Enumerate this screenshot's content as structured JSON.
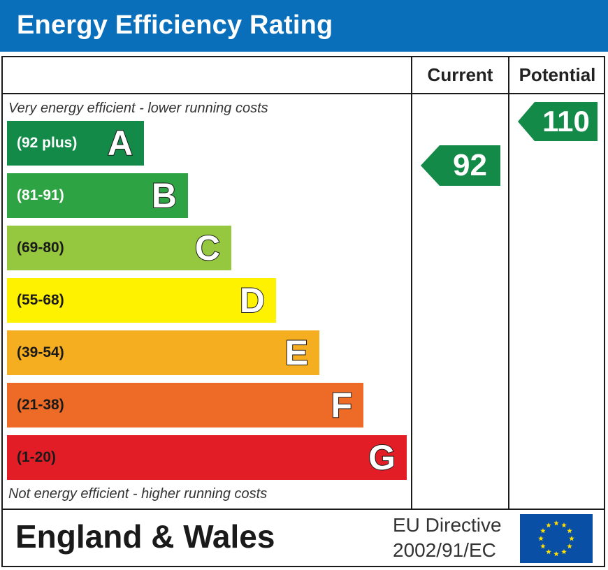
{
  "header": {
    "title": "Energy Efficiency Rating"
  },
  "columns": {
    "current": "Current",
    "potential": "Potential"
  },
  "captions": {
    "top": "Very energy efficient - lower running costs",
    "bottom": "Not energy efficient - higher running costs"
  },
  "bands": [
    {
      "range": "(92 plus)",
      "letter": "A",
      "color": "#138a47",
      "range_color": "#ffffff"
    },
    {
      "range": "(81-91)",
      "letter": "B",
      "color": "#2ea343",
      "range_color": "#ffffff"
    },
    {
      "range": "(69-80)",
      "letter": "C",
      "color": "#95c83f",
      "range_color": "#1a1a1a"
    },
    {
      "range": "(55-68)",
      "letter": "D",
      "color": "#fff200",
      "range_color": "#1a1a1a"
    },
    {
      "range": "(39-54)",
      "letter": "E",
      "color": "#f6ae21",
      "range_color": "#1a1a1a"
    },
    {
      "range": "(21-38)",
      "letter": "F",
      "color": "#ed6b26",
      "range_color": "#1a1a1a"
    },
    {
      "range": "(1-20)",
      "letter": "G",
      "color": "#e31d26",
      "range_color": "#1a1a1a"
    }
  ],
  "ratings": {
    "current": {
      "value": "92",
      "color": "#138a47"
    },
    "potential": {
      "value": "110",
      "color": "#138a47"
    }
  },
  "footer": {
    "region": "England & Wales",
    "directive_line1": "EU Directive",
    "directive_line2": "2002/91/EC",
    "flag_icon": "eu-flag-icon",
    "flag_color": "#0a4fa6",
    "star_color": "#ffde00"
  }
}
